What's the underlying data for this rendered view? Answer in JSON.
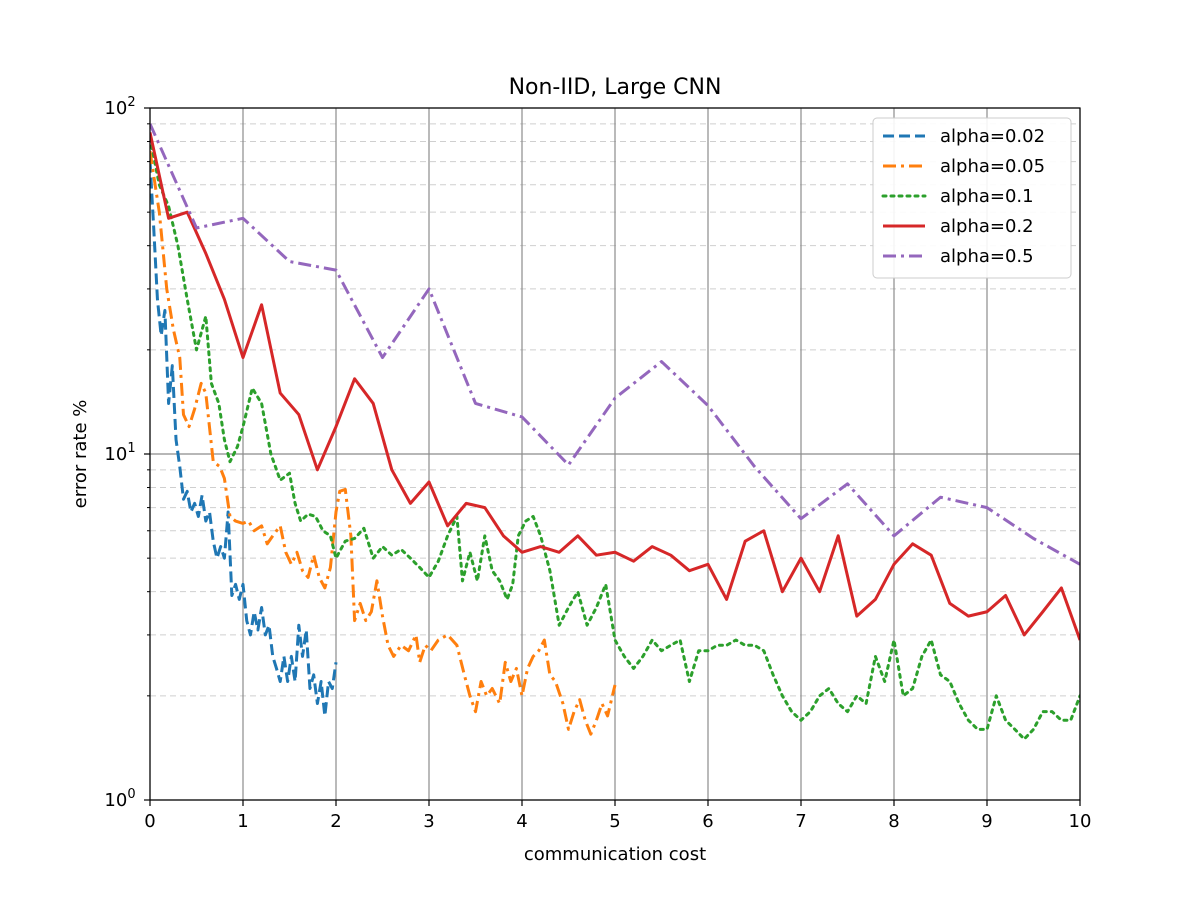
{
  "chart_data": {
    "type": "line",
    "title": "Non-IID, Large CNN",
    "xlabel": "communication cost",
    "ylabel": "error rate %",
    "xlim": [
      0,
      10
    ],
    "ylim": [
      1,
      100
    ],
    "yscale": "log",
    "x_ticks": [
      "0",
      "1",
      "2",
      "3",
      "4",
      "5",
      "6",
      "7",
      "8",
      "9",
      "10"
    ],
    "y_ticks": [
      {
        "value": 1,
        "base": "10",
        "exp": "0"
      },
      {
        "value": 10,
        "base": "10",
        "exp": "1"
      },
      {
        "value": 100,
        "base": "10",
        "exp": "2"
      }
    ],
    "grid": "major solid, minor dashed",
    "legend_position": "top-right",
    "series": [
      {
        "name": "alpha=0.02",
        "color": "#1f77b4",
        "dash": "dashed",
        "points": [
          [
            0,
            70
          ],
          [
            0.04,
            45
          ],
          [
            0.08,
            28
          ],
          [
            0.12,
            22
          ],
          [
            0.16,
            26
          ],
          [
            0.2,
            14
          ],
          [
            0.24,
            18
          ],
          [
            0.28,
            11
          ],
          [
            0.32,
            9.2
          ],
          [
            0.36,
            7.4
          ],
          [
            0.4,
            7.8
          ],
          [
            0.44,
            6.8
          ],
          [
            0.48,
            7.2
          ],
          [
            0.52,
            6.6
          ],
          [
            0.56,
            7.6
          ],
          [
            0.6,
            6.4
          ],
          [
            0.64,
            6.8
          ],
          [
            0.68,
            5.6
          ],
          [
            0.72,
            5.0
          ],
          [
            0.76,
            5.4
          ],
          [
            0.8,
            5.0
          ],
          [
            0.84,
            6.8
          ],
          [
            0.88,
            3.9
          ],
          [
            0.92,
            4.2
          ],
          [
            0.96,
            3.8
          ],
          [
            1.0,
            4.2
          ],
          [
            1.04,
            3.3
          ],
          [
            1.08,
            3.0
          ],
          [
            1.12,
            3.5
          ],
          [
            1.16,
            3.1
          ],
          [
            1.2,
            3.6
          ],
          [
            1.24,
            3.0
          ],
          [
            1.28,
            3.2
          ],
          [
            1.32,
            2.6
          ],
          [
            1.36,
            2.4
          ],
          [
            1.4,
            2.2
          ],
          [
            1.44,
            2.6
          ],
          [
            1.48,
            2.2
          ],
          [
            1.52,
            2.6
          ],
          [
            1.56,
            2.2
          ],
          [
            1.6,
            3.2
          ],
          [
            1.64,
            2.6
          ],
          [
            1.68,
            3.1
          ],
          [
            1.72,
            2.1
          ],
          [
            1.76,
            2.3
          ],
          [
            1.8,
            1.9
          ],
          [
            1.84,
            2.2
          ],
          [
            1.88,
            1.75
          ],
          [
            1.92,
            2.2
          ],
          [
            1.96,
            2.1
          ],
          [
            2.0,
            2.5
          ]
        ]
      },
      {
        "name": "alpha=0.05",
        "color": "#ff7f0e",
        "dash": "dashdot",
        "points": [
          [
            0,
            75
          ],
          [
            0.1,
            50
          ],
          [
            0.18,
            30
          ],
          [
            0.25,
            23
          ],
          [
            0.32,
            19
          ],
          [
            0.36,
            13
          ],
          [
            0.42,
            12
          ],
          [
            0.48,
            13.5
          ],
          [
            0.55,
            16
          ],
          [
            0.6,
            15
          ],
          [
            0.68,
            9.5
          ],
          [
            0.75,
            9.2
          ],
          [
            0.8,
            8.5
          ],
          [
            0.86,
            6.6
          ],
          [
            0.92,
            6.4
          ],
          [
            1.0,
            6.3
          ],
          [
            1.06,
            6.4
          ],
          [
            1.12,
            6.0
          ],
          [
            1.2,
            6.2
          ],
          [
            1.26,
            5.5
          ],
          [
            1.32,
            5.8
          ],
          [
            1.4,
            6.2
          ],
          [
            1.46,
            5.2
          ],
          [
            1.52,
            4.8
          ],
          [
            1.58,
            5.2
          ],
          [
            1.64,
            4.6
          ],
          [
            1.7,
            4.4
          ],
          [
            1.76,
            5.1
          ],
          [
            1.82,
            4.4
          ],
          [
            1.88,
            4.1
          ],
          [
            1.94,
            4.7
          ],
          [
            2.0,
            6.8
          ],
          [
            2.04,
            7.8
          ],
          [
            2.1,
            7.9
          ],
          [
            2.16,
            5.8
          ],
          [
            2.2,
            3.3
          ],
          [
            2.26,
            3.7
          ],
          [
            2.32,
            3.3
          ],
          [
            2.38,
            3.5
          ],
          [
            2.44,
            4.3
          ],
          [
            2.5,
            3.4
          ],
          [
            2.56,
            2.8
          ],
          [
            2.62,
            2.6
          ],
          [
            2.7,
            2.8
          ],
          [
            2.78,
            2.7
          ],
          [
            2.86,
            3.0
          ],
          [
            2.9,
            2.5
          ],
          [
            2.96,
            2.8
          ],
          [
            3.02,
            2.7
          ],
          [
            3.1,
            2.9
          ],
          [
            3.2,
            3.0
          ],
          [
            3.3,
            2.8
          ],
          [
            3.38,
            2.3
          ],
          [
            3.44,
            2.0
          ],
          [
            3.5,
            1.8
          ],
          [
            3.56,
            2.2
          ],
          [
            3.62,
            2.0
          ],
          [
            3.68,
            2.1
          ],
          [
            3.76,
            1.9
          ],
          [
            3.82,
            2.5
          ],
          [
            3.88,
            2.2
          ],
          [
            3.94,
            2.4
          ],
          [
            4.0,
            2.0
          ],
          [
            4.06,
            2.4
          ],
          [
            4.12,
            2.6
          ],
          [
            4.18,
            2.7
          ],
          [
            4.24,
            2.9
          ],
          [
            4.3,
            2.3
          ],
          [
            4.36,
            2.2
          ],
          [
            4.44,
            1.9
          ],
          [
            4.5,
            1.6
          ],
          [
            4.56,
            1.8
          ],
          [
            4.62,
            1.95
          ],
          [
            4.68,
            1.7
          ],
          [
            4.74,
            1.55
          ],
          [
            4.8,
            1.7
          ],
          [
            4.86,
            1.9
          ],
          [
            4.92,
            1.75
          ],
          [
            5.0,
            2.15
          ]
        ]
      },
      {
        "name": "alpha=0.1",
        "color": "#2ca02c",
        "dash": "dotted",
        "points": [
          [
            0,
            82
          ],
          [
            0.1,
            60
          ],
          [
            0.2,
            52
          ],
          [
            0.3,
            40
          ],
          [
            0.4,
            28
          ],
          [
            0.5,
            20
          ],
          [
            0.6,
            25
          ],
          [
            0.66,
            16
          ],
          [
            0.74,
            14
          ],
          [
            0.8,
            11
          ],
          [
            0.86,
            9.5
          ],
          [
            0.94,
            10.5
          ],
          [
            1.0,
            12
          ],
          [
            1.1,
            15.5
          ],
          [
            1.2,
            14
          ],
          [
            1.3,
            10
          ],
          [
            1.4,
            8.4
          ],
          [
            1.5,
            8.8
          ],
          [
            1.56,
            7.2
          ],
          [
            1.62,
            6.4
          ],
          [
            1.7,
            6.7
          ],
          [
            1.78,
            6.6
          ],
          [
            1.86,
            6.0
          ],
          [
            1.94,
            5.8
          ],
          [
            2.0,
            5.0
          ],
          [
            2.1,
            5.6
          ],
          [
            2.2,
            5.7
          ],
          [
            2.3,
            6.1
          ],
          [
            2.4,
            5.0
          ],
          [
            2.5,
            5.4
          ],
          [
            2.6,
            5.1
          ],
          [
            2.7,
            5.3
          ],
          [
            2.8,
            5.0
          ],
          [
            2.9,
            4.7
          ],
          [
            3.0,
            4.4
          ],
          [
            3.1,
            4.9
          ],
          [
            3.2,
            5.8
          ],
          [
            3.3,
            6.6
          ],
          [
            3.36,
            4.3
          ],
          [
            3.44,
            5.2
          ],
          [
            3.52,
            4.3
          ],
          [
            3.6,
            5.8
          ],
          [
            3.68,
            4.6
          ],
          [
            3.76,
            4.3
          ],
          [
            3.84,
            3.8
          ],
          [
            3.9,
            4.2
          ],
          [
            3.96,
            5.8
          ],
          [
            4.04,
            6.4
          ],
          [
            4.12,
            6.6
          ],
          [
            4.2,
            5.8
          ],
          [
            4.3,
            4.6
          ],
          [
            4.4,
            3.2
          ],
          [
            4.5,
            3.6
          ],
          [
            4.6,
            4.0
          ],
          [
            4.7,
            3.2
          ],
          [
            4.8,
            3.6
          ],
          [
            4.9,
            4.2
          ],
          [
            5.0,
            2.9
          ],
          [
            5.1,
            2.6
          ],
          [
            5.2,
            2.4
          ],
          [
            5.3,
            2.6
          ],
          [
            5.4,
            2.9
          ],
          [
            5.5,
            2.7
          ],
          [
            5.6,
            2.8
          ],
          [
            5.7,
            2.9
          ],
          [
            5.8,
            2.2
          ],
          [
            5.9,
            2.7
          ],
          [
            6.0,
            2.7
          ],
          [
            6.1,
            2.8
          ],
          [
            6.2,
            2.8
          ],
          [
            6.3,
            2.9
          ],
          [
            6.4,
            2.8
          ],
          [
            6.5,
            2.8
          ],
          [
            6.6,
            2.7
          ],
          [
            6.7,
            2.3
          ],
          [
            6.8,
            2.0
          ],
          [
            6.9,
            1.8
          ],
          [
            7.0,
            1.7
          ],
          [
            7.1,
            1.8
          ],
          [
            7.2,
            2.0
          ],
          [
            7.3,
            2.1
          ],
          [
            7.4,
            1.9
          ],
          [
            7.5,
            1.8
          ],
          [
            7.6,
            2.0
          ],
          [
            7.7,
            1.9
          ],
          [
            7.8,
            2.6
          ],
          [
            7.9,
            2.2
          ],
          [
            8.0,
            2.9
          ],
          [
            8.1,
            2.0
          ],
          [
            8.2,
            2.1
          ],
          [
            8.3,
            2.6
          ],
          [
            8.4,
            2.9
          ],
          [
            8.5,
            2.3
          ],
          [
            8.6,
            2.2
          ],
          [
            8.7,
            1.9
          ],
          [
            8.8,
            1.7
          ],
          [
            8.9,
            1.6
          ],
          [
            9.0,
            1.6
          ],
          [
            9.1,
            2.0
          ],
          [
            9.2,
            1.7
          ],
          [
            9.3,
            1.6
          ],
          [
            9.4,
            1.5
          ],
          [
            9.5,
            1.6
          ],
          [
            9.6,
            1.8
          ],
          [
            9.7,
            1.8
          ],
          [
            9.8,
            1.7
          ],
          [
            9.9,
            1.7
          ],
          [
            10.0,
            2.0
          ]
        ]
      },
      {
        "name": "alpha=0.2",
        "color": "#d62728",
        "dash": "solid",
        "points": [
          [
            0,
            85
          ],
          [
            0.2,
            48
          ],
          [
            0.4,
            50
          ],
          [
            0.6,
            38
          ],
          [
            0.8,
            28
          ],
          [
            1.0,
            19
          ],
          [
            1.2,
            27
          ],
          [
            1.4,
            15
          ],
          [
            1.6,
            13
          ],
          [
            1.8,
            9
          ],
          [
            2.0,
            12
          ],
          [
            2.2,
            16.5
          ],
          [
            2.4,
            14
          ],
          [
            2.6,
            9
          ],
          [
            2.8,
            7.2
          ],
          [
            3.0,
            8.3
          ],
          [
            3.2,
            6.2
          ],
          [
            3.4,
            7.2
          ],
          [
            3.6,
            7.0
          ],
          [
            3.8,
            5.8
          ],
          [
            4.0,
            5.2
          ],
          [
            4.2,
            5.4
          ],
          [
            4.4,
            5.2
          ],
          [
            4.6,
            5.8
          ],
          [
            4.8,
            5.1
          ],
          [
            5.0,
            5.2
          ],
          [
            5.2,
            4.9
          ],
          [
            5.4,
            5.4
          ],
          [
            5.6,
            5.1
          ],
          [
            5.8,
            4.6
          ],
          [
            6.0,
            4.8
          ],
          [
            6.2,
            3.8
          ],
          [
            6.4,
            5.6
          ],
          [
            6.6,
            6.0
          ],
          [
            6.8,
            4.0
          ],
          [
            7.0,
            5.0
          ],
          [
            7.2,
            4.0
          ],
          [
            7.4,
            5.8
          ],
          [
            7.6,
            3.4
          ],
          [
            7.8,
            3.8
          ],
          [
            8.0,
            4.8
          ],
          [
            8.2,
            5.5
          ],
          [
            8.4,
            5.1
          ],
          [
            8.6,
            3.7
          ],
          [
            8.8,
            3.4
          ],
          [
            9.0,
            3.5
          ],
          [
            9.2,
            3.9
          ],
          [
            9.4,
            3.0
          ],
          [
            9.6,
            3.5
          ],
          [
            9.8,
            4.1
          ],
          [
            10.0,
            2.9
          ]
        ]
      },
      {
        "name": "alpha=0.5",
        "color": "#9467bd",
        "dash": "dashdot",
        "points": [
          [
            0,
            90
          ],
          [
            0.5,
            45
          ],
          [
            1.0,
            48
          ],
          [
            1.5,
            36
          ],
          [
            2.0,
            34
          ],
          [
            2.5,
            19
          ],
          [
            3.0,
            30
          ],
          [
            3.5,
            14
          ],
          [
            4.0,
            12.8
          ],
          [
            4.5,
            9.3
          ],
          [
            5.0,
            14.5
          ],
          [
            5.5,
            18.5
          ],
          [
            6.0,
            13.8
          ],
          [
            6.5,
            9.2
          ],
          [
            7.0,
            6.5
          ],
          [
            7.5,
            8.2
          ],
          [
            8.0,
            5.8
          ],
          [
            8.5,
            7.5
          ],
          [
            9.0,
            7.0
          ],
          [
            9.5,
            5.7
          ],
          [
            10.0,
            4.8
          ]
        ]
      }
    ]
  }
}
